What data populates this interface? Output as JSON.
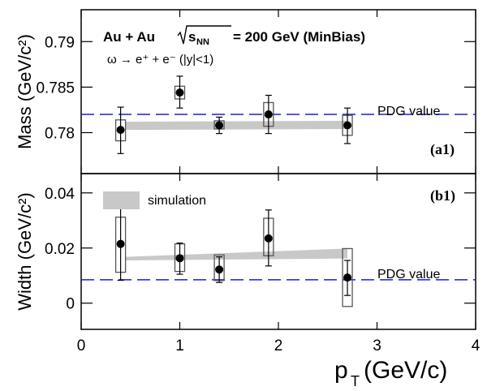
{
  "chart_data": [
    {
      "type": "scatter",
      "panel_label": "(a1)",
      "title": "Au + Au",
      "title_energy_prefix": "s",
      "title_energy_sub": "NN",
      "title_energy_value": "= 200 GeV (MinBias)",
      "subtitle": "ω → e⁺ + e⁻  (|y|<1)",
      "ylabel": "Mass (GeV/c²)",
      "xlim": [
        0,
        4
      ],
      "ylim": [
        0.7755,
        0.7935
      ],
      "yticks": [
        "0.78",
        "0.785",
        "0.79"
      ],
      "ytick_values": [
        0.78,
        0.785,
        0.79
      ],
      "reference_label": "PDG value",
      "reference_value": 0.782,
      "series": [
        {
          "x": [
            0.4,
            1.0,
            1.4,
            1.9,
            2.7
          ],
          "y": [
            0.7803,
            0.7844,
            0.7808,
            0.782,
            0.7808
          ],
          "err_low": [
            0.7777,
            0.7827,
            0.7799,
            0.7799,
            0.7788
          ],
          "err_high": [
            0.7828,
            0.7862,
            0.7817,
            0.7841,
            0.7827
          ],
          "sys_low": [
            0.7791,
            0.7837,
            0.7804,
            0.7807,
            0.7797
          ],
          "sys_high": [
            0.7814,
            0.7851,
            0.7813,
            0.7833,
            0.7819
          ]
        }
      ],
      "band": {
        "x": [
          0.45,
          2.7
        ],
        "low": [
          0.7803,
          0.7804
        ],
        "high": [
          0.7812,
          0.7813
        ]
      }
    },
    {
      "type": "scatter",
      "panel_label": "(b1)",
      "xlabel": "p",
      "xlabel_sub": "T",
      "xlabel_unit": "(GeV/c)",
      "ylabel": "Width (GeV/c²)",
      "xlim": [
        0,
        4
      ],
      "xticks": [
        "0",
        "1",
        "2",
        "3",
        "4"
      ],
      "xtick_values": [
        0,
        1,
        2,
        3,
        4
      ],
      "ylim": [
        -0.0095,
        0.047
      ],
      "yticks": [
        "0",
        "0.02",
        "0.04"
      ],
      "ytick_values": [
        0,
        0.02,
        0.04
      ],
      "legend_label": "simulation",
      "reference_label": "PDG value",
      "reference_value": 0.0085,
      "series": [
        {
          "x": [
            0.4,
            1.0,
            1.4,
            1.9,
            2.7
          ],
          "y": [
            0.0215,
            0.0163,
            0.0122,
            0.0235,
            0.0093
          ],
          "err_low": [
            0.0083,
            0.0105,
            0.0075,
            0.0135,
            0.0028
          ],
          "err_high": [
            0.0345,
            0.0218,
            0.0168,
            0.0338,
            0.0155
          ],
          "sys_low": [
            0.0112,
            0.0115,
            0.0082,
            0.0172,
            -0.0012
          ],
          "sys_high": [
            0.0312,
            0.0215,
            0.0175,
            0.0308,
            0.0198
          ]
        }
      ],
      "band": {
        "x": [
          0.45,
          2.7
        ],
        "low": [
          0.0155,
          0.0162
        ],
        "high": [
          0.0168,
          0.0198
        ]
      }
    }
  ]
}
